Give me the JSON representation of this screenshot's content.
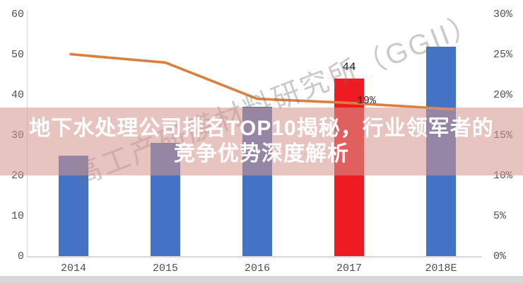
{
  "overlay": {
    "line1": "地下水处理公司排名TOP10揭秘，行业领军者的",
    "line2": "竞争优势深度解析"
  },
  "watermark": {
    "text": "高工产研膜材料研究所（GGII）"
  },
  "chart_data": {
    "type": "bar",
    "categories": [
      "2014",
      "2015",
      "2016",
      "2017",
      "2018E"
    ],
    "series": [
      {
        "name": "bar-series-left-axis",
        "type": "bar",
        "values": [
          25,
          28,
          37,
          44,
          52
        ]
      },
      {
        "name": "line-series-right-axis-percent",
        "type": "line",
        "values": [
          25,
          24,
          19.5,
          19,
          18.3
        ]
      }
    ],
    "bar_colors": [
      "#4472c4",
      "#4472c4",
      "#4472c4",
      "#ee1b23",
      "#4472c4"
    ],
    "line_color": "#d9803e",
    "left_axis": {
      "min": 0,
      "max": 60,
      "ticks": [
        "60",
        "50",
        "40",
        "30",
        "20",
        "10",
        "0"
      ]
    },
    "right_axis": {
      "min": 0,
      "max": 30,
      "ticks": [
        "30%",
        "25%",
        "20%",
        "15%",
        "10%",
        "5%",
        "0%"
      ]
    },
    "data_labels": {
      "bar_2017": "44",
      "line_2017": "19%"
    },
    "grid": false,
    "legend": false,
    "title": "",
    "xlabel": "",
    "ylabel": ""
  }
}
